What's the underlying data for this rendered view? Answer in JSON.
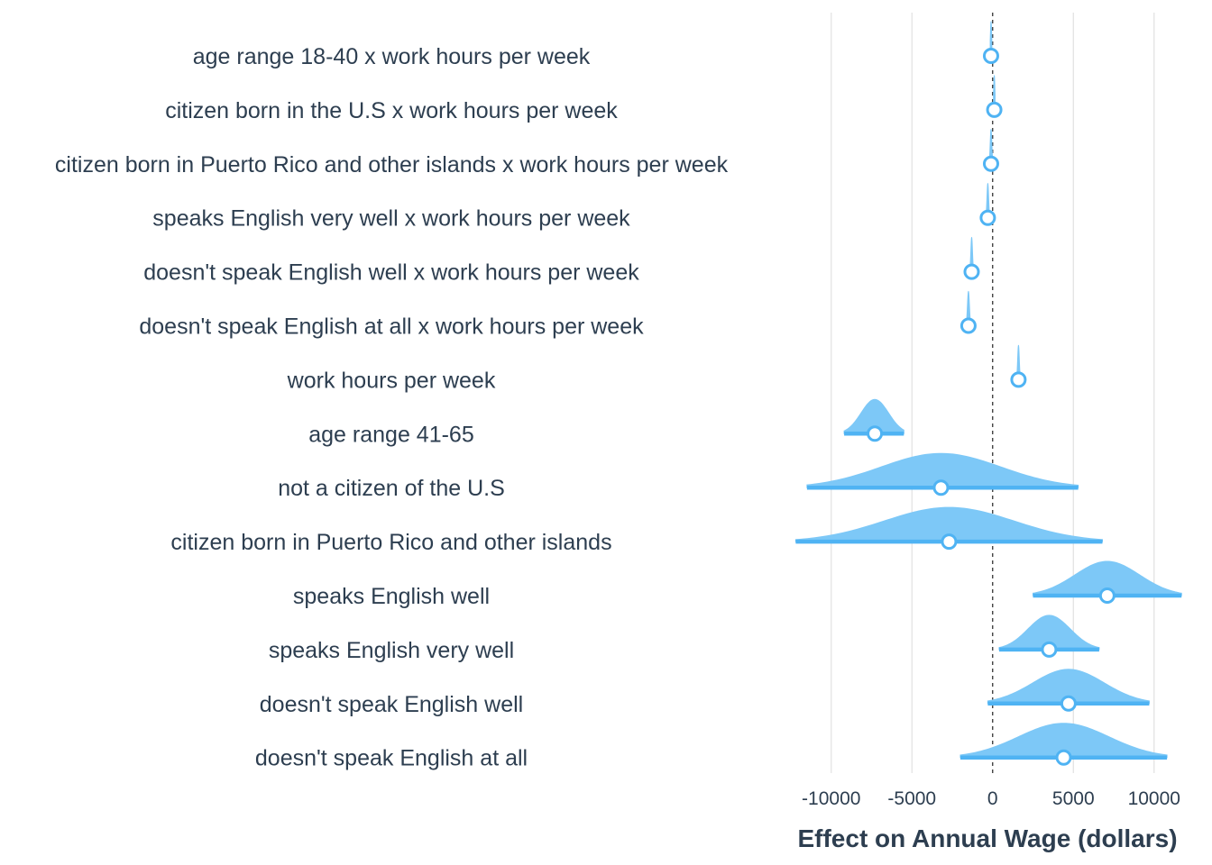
{
  "chart_data": {
    "type": "ridgeline",
    "xlabel": "Effect on Annual Wage (dollars)",
    "xlim": [
      -12500,
      11800
    ],
    "x_ticks": [
      -10000,
      -5000,
      0,
      5000,
      10000
    ],
    "x_tick_labels": [
      "-10000",
      "-5000",
      "0",
      "5000",
      "10000"
    ],
    "reference_line": 0,
    "colors": {
      "fill": "#7dc8f7",
      "interval": "#4fb3f3",
      "point_stroke": "#4fb3f3",
      "point_fill": "#ffffff"
    },
    "rows": [
      {
        "label": "age range 18-40 x work hours per week",
        "estimate": -100,
        "low": -150,
        "high": -50,
        "spread": 40
      },
      {
        "label": "citizen born in the U.S x work hours per week",
        "estimate": 100,
        "low": 50,
        "high": 150,
        "spread": 40
      },
      {
        "label": "citizen born in Puerto Rico and other islands x work hours per week",
        "estimate": -100,
        "low": -200,
        "high": 0,
        "spread": 50
      },
      {
        "label": "speaks English very well x work hours per week",
        "estimate": -300,
        "low": -400,
        "high": -200,
        "spread": 50
      },
      {
        "label": "doesn't speak English well x work hours per week",
        "estimate": -1300,
        "low": -1400,
        "high": -1200,
        "spread": 50
      },
      {
        "label": "doesn't speak English at all x work hours per week",
        "estimate": -1500,
        "low": -1650,
        "high": -1350,
        "spread": 60
      },
      {
        "label": "work hours per week",
        "estimate": 1600,
        "low": 1500,
        "high": 1700,
        "spread": 50
      },
      {
        "label": "age range 41-65",
        "estimate": -7300,
        "low": -9200,
        "high": -5500,
        "spread": 850
      },
      {
        "label": "not a citizen of the U.S",
        "estimate": -3200,
        "low": -11500,
        "high": 5300,
        "spread": 3700
      },
      {
        "label": "citizen born in Puerto Rico and other islands",
        "estimate": -2700,
        "low": -12200,
        "high": 6800,
        "spread": 4000
      },
      {
        "label": "speaks English well",
        "estimate": 7100,
        "low": 2500,
        "high": 11700,
        "spread": 2000
      },
      {
        "label": "speaks English very well",
        "estimate": 3500,
        "low": 400,
        "high": 6600,
        "spread": 1300
      },
      {
        "label": "doesn't speak English well",
        "estimate": 4700,
        "low": -300,
        "high": 9700,
        "spread": 2200
      },
      {
        "label": "doesn't speak English at all",
        "estimate": 4400,
        "low": -2000,
        "high": 10800,
        "spread": 2800
      }
    ]
  }
}
